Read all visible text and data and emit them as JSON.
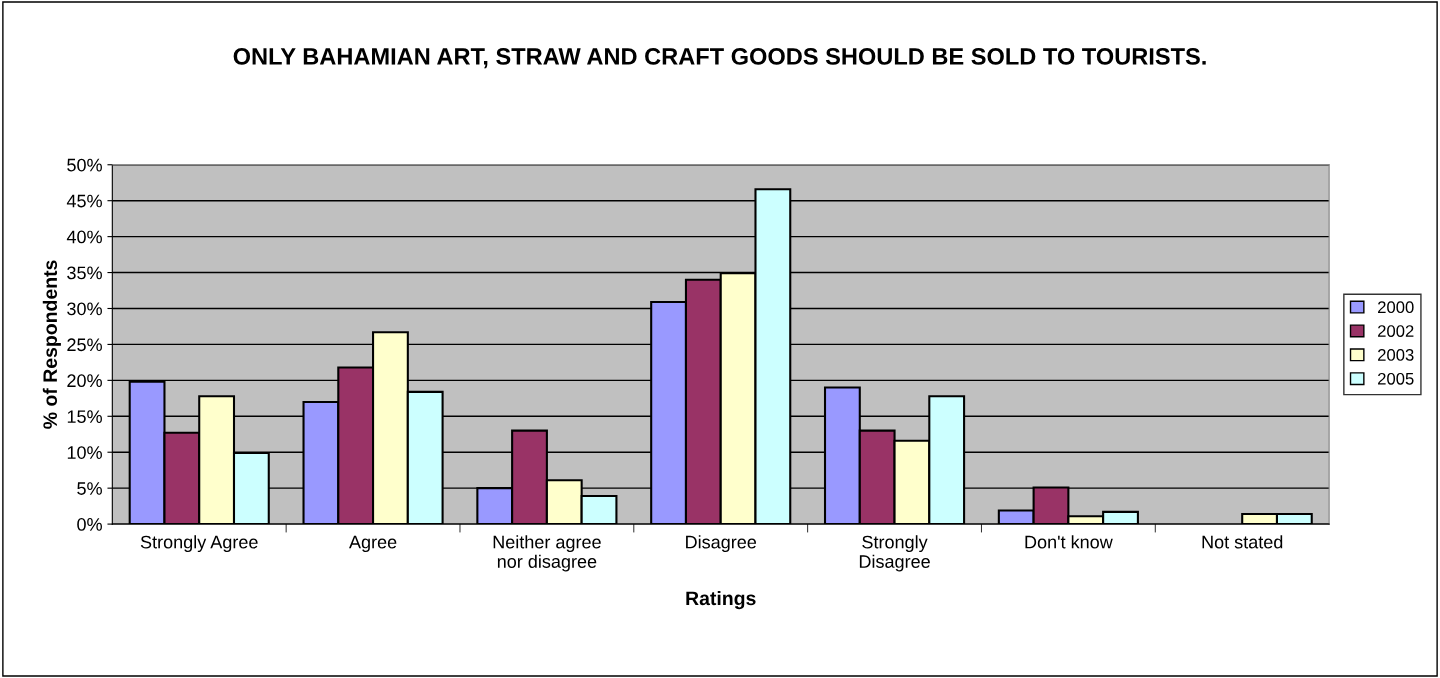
{
  "chart_data": {
    "type": "bar",
    "title": "ONLY BAHAMIAN ART, STRAW AND CRAFT GOODS SHOULD BE SOLD TO TOURISTS.",
    "xlabel": "Ratings",
    "ylabel": "% of Respondents",
    "categories": [
      "Strongly Agree",
      "Agree",
      "Neither agree\nnor disagree",
      "Disagree",
      "Strongly\nDisagree",
      "Don't know",
      "Not stated"
    ],
    "series": [
      {
        "name": "2000",
        "color": "#9999ff",
        "values": [
          19.8,
          17.0,
          5.0,
          30.9,
          19.0,
          1.9,
          null
        ]
      },
      {
        "name": "2002",
        "color": "#993366",
        "values": [
          12.7,
          21.8,
          13.0,
          34.0,
          13.0,
          5.1,
          null
        ]
      },
      {
        "name": "2003",
        "color": "#ffffcc",
        "values": [
          17.8,
          26.7,
          6.1,
          34.9,
          11.6,
          1.1,
          1.4
        ]
      },
      {
        "name": "2005",
        "color": "#ccffff",
        "values": [
          9.9,
          18.4,
          3.9,
          46.6,
          17.8,
          1.7,
          1.4
        ]
      }
    ],
    "ylim": [
      0,
      50
    ],
    "yticks": [
      {
        "value": 0,
        "label": "0%"
      },
      {
        "value": 5,
        "label": "5%"
      },
      {
        "value": 10,
        "label": "10%"
      },
      {
        "value": 15,
        "label": "15%"
      },
      {
        "value": 20,
        "label": "20%"
      },
      {
        "value": 25,
        "label": "25%"
      },
      {
        "value": 30,
        "label": "30%"
      },
      {
        "value": 35,
        "label": "35%"
      },
      {
        "value": 40,
        "label": "40%"
      },
      {
        "value": 45,
        "label": "45%"
      },
      {
        "value": 50,
        "label": "50%"
      }
    ],
    "grid": "y",
    "legend": "right"
  }
}
